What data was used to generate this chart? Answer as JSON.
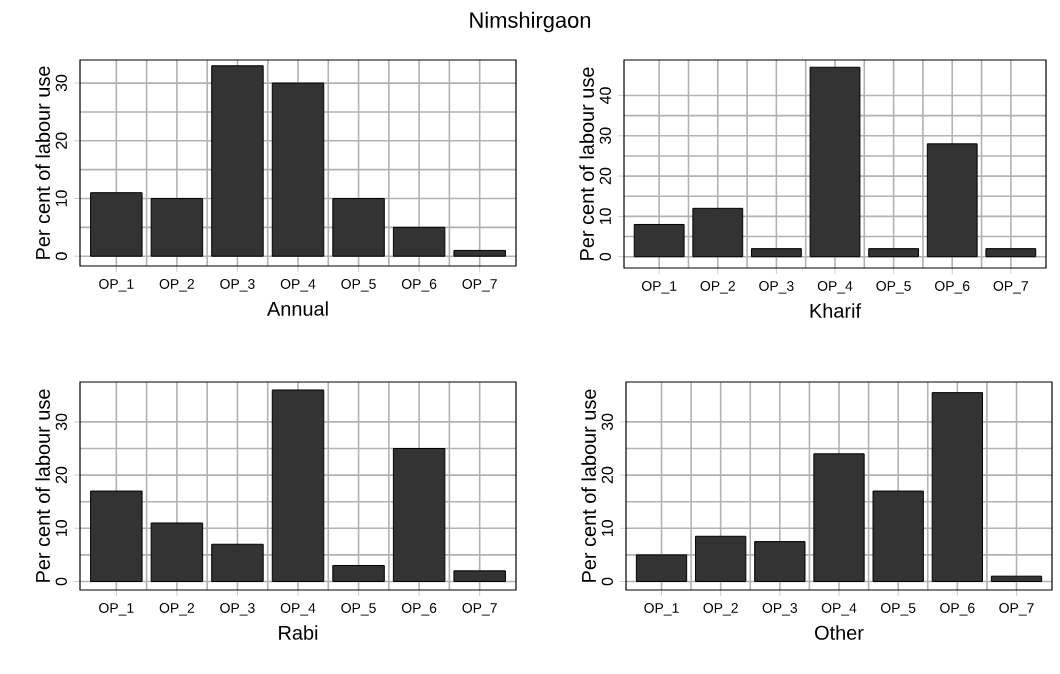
{
  "chart_data": [
    {
      "type": "bar",
      "title": "Nimshirgaon",
      "categories": [
        "OP_1",
        "OP_2",
        "OP_3",
        "OP_4",
        "OP_5",
        "OP_6",
        "OP_7"
      ],
      "values": [
        11,
        10,
        33,
        30,
        10,
        5,
        1
      ],
      "color": "#333333",
      "xlabel": "Annual",
      "ylabel": "Per cent of labour use",
      "ylim": [
        -1.7,
        34
      ],
      "yticks": [
        0,
        10,
        20,
        30
      ],
      "grid": true
    },
    {
      "type": "bar",
      "categories": [
        "OP_1",
        "OP_2",
        "OP_3",
        "OP_4",
        "OP_5",
        "OP_6",
        "OP_7"
      ],
      "values": [
        8,
        12,
        2,
        47,
        2,
        28,
        2
      ],
      "color": "#333333",
      "xlabel": "Kharif",
      "ylabel": "Per cent of labour use",
      "ylim": [
        -2.8,
        48.8
      ],
      "yticks": [
        0,
        10,
        20,
        30,
        40
      ],
      "grid": true
    },
    {
      "type": "bar",
      "categories": [
        "OP_1",
        "OP_2",
        "OP_3",
        "OP_4",
        "OP_5",
        "OP_6",
        "OP_7"
      ],
      "values": [
        17,
        11,
        7,
        36,
        3,
        25,
        2
      ],
      "color": "#333333",
      "xlabel": "Rabi",
      "ylabel": "Per cent of labour use",
      "ylim": [
        -1.6,
        37.5
      ],
      "yticks": [
        0,
        10,
        20,
        30
      ],
      "grid": true
    },
    {
      "type": "bar",
      "categories": [
        "OP_1",
        "OP_2",
        "OP_3",
        "OP_4",
        "OP_5",
        "OP_6",
        "OP_7"
      ],
      "values": [
        5,
        8.5,
        7.5,
        24,
        17,
        35.5,
        1
      ],
      "color": "#333333",
      "xlabel": "Other",
      "ylabel": "Per cent of labour use",
      "ylim": [
        -1.6,
        37.5
      ],
      "yticks": [
        0,
        10,
        20,
        30
      ],
      "grid": true
    }
  ]
}
